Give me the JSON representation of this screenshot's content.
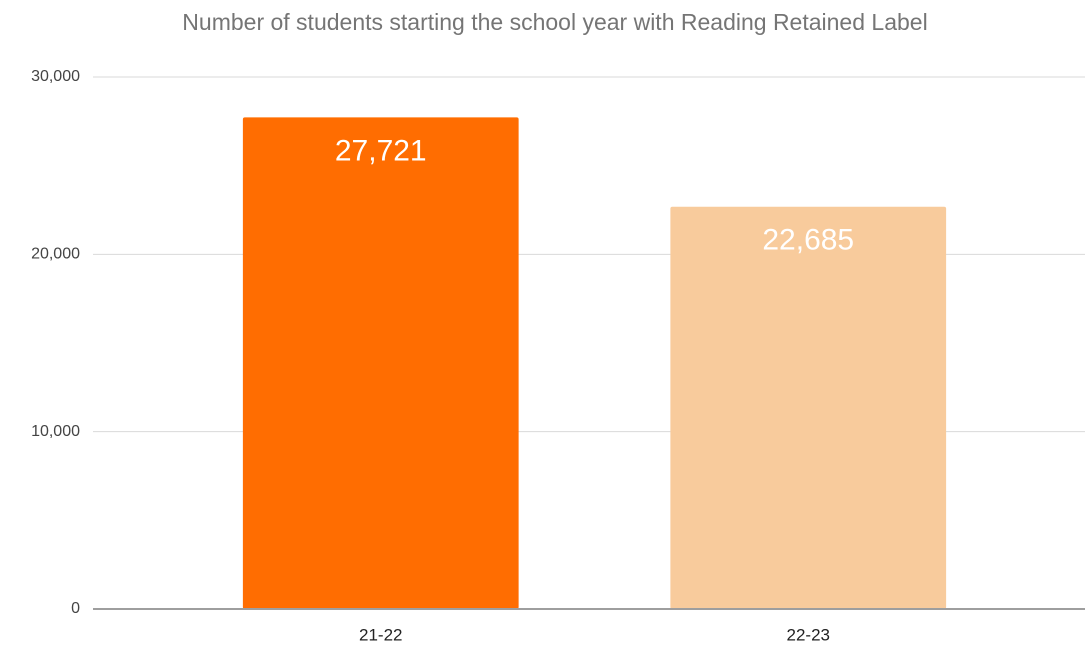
{
  "chart_data": {
    "type": "bar",
    "title": "Number of students starting the school year with Reading Retained Label",
    "categories": [
      "21-22",
      "22-23"
    ],
    "values": [
      27721,
      22685
    ],
    "value_labels": [
      "27,721",
      "22,685"
    ],
    "colors": [
      "#ff6d01",
      "#f8cb9c"
    ],
    "ylim": [
      0,
      30000
    ],
    "yticks": [
      0,
      {
        "value": 10000,
        "label": "10,000"
      },
      {
        "value": 20000,
        "label": "20,000"
      },
      {
        "value": 30000,
        "label": "30,000"
      }
    ],
    "grid": true
  }
}
